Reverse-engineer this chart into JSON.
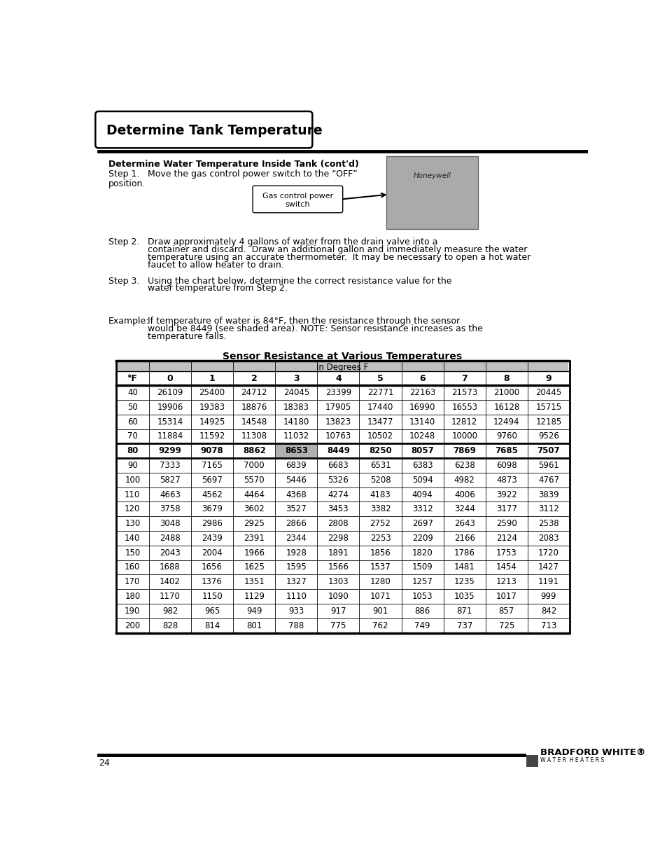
{
  "page_title": "Determine Tank Temperature",
  "section_title": "Determine Water Temperature Inside Tank (cont'd)",
  "step1_label": "Step 1.",
  "step2_label": "Step 2.",
  "step3_label": "Step 3.",
  "example_label": "Example:",
  "step1_line1": "Move the gas control power switch to the “OFF”",
  "step1_line2": "position.",
  "gas_control_label": "Gas control power\nswitch",
  "step2_text_lines": [
    "Draw approximately 4 gallons of water from the drain valve into a",
    "container and discard.  Draw an additional gallon and immediately measure the water",
    "temperature using an accurate thermometer.  It may be necessary to open a hot water",
    "faucet to allow heater to drain."
  ],
  "step3_text_lines": [
    "Using the chart below, determine the correct resistance value for the",
    "water temperature from Step 2."
  ],
  "example_text_lines": [
    "If temperature of water is 84°F, then the resistance through the sensor",
    "would be 8449 (see shaded area). NOTE: Sensor resistance increases as the",
    "temperature falls."
  ],
  "table_title": "Sensor Resistance at Various Temperatures",
  "table_subtitle": "In Degrees F",
  "col_headers": [
    "°F",
    "0",
    "1",
    "2",
    "3",
    "4",
    "5",
    "6",
    "7",
    "8",
    "9"
  ],
  "table_data": [
    [
      40,
      26109,
      25400,
      24712,
      24045,
      23399,
      22771,
      22163,
      21573,
      21000,
      20445
    ],
    [
      50,
      19906,
      19383,
      18876,
      18383,
      17905,
      17440,
      16990,
      16553,
      16128,
      15715
    ],
    [
      60,
      15314,
      14925,
      14548,
      14180,
      13823,
      13477,
      13140,
      12812,
      12494,
      12185
    ],
    [
      70,
      11884,
      11592,
      11308,
      11032,
      10763,
      10502,
      10248,
      10000,
      9760,
      9526
    ],
    [
      80,
      9299,
      9078,
      8862,
      8653,
      8449,
      8250,
      8057,
      7869,
      7685,
      7507
    ],
    [
      90,
      7333,
      7165,
      7000,
      6839,
      6683,
      6531,
      6383,
      6238,
      6098,
      5961
    ],
    [
      100,
      5827,
      5697,
      5570,
      5446,
      5326,
      5208,
      5094,
      4982,
      4873,
      4767
    ],
    [
      110,
      4663,
      4562,
      4464,
      4368,
      4274,
      4183,
      4094,
      4006,
      3922,
      3839
    ],
    [
      120,
      3758,
      3679,
      3602,
      3527,
      3453,
      3382,
      3312,
      3244,
      3177,
      3112
    ],
    [
      130,
      3048,
      2986,
      2925,
      2866,
      2808,
      2752,
      2697,
      2643,
      2590,
      2538
    ],
    [
      140,
      2488,
      2439,
      2391,
      2344,
      2298,
      2253,
      2209,
      2166,
      2124,
      2083
    ],
    [
      150,
      2043,
      2004,
      1966,
      1928,
      1891,
      1856,
      1820,
      1786,
      1753,
      1720
    ],
    [
      160,
      1688,
      1656,
      1625,
      1595,
      1566,
      1537,
      1509,
      1481,
      1454,
      1427
    ],
    [
      170,
      1402,
      1376,
      1351,
      1327,
      1303,
      1280,
      1257,
      1235,
      1213,
      1191
    ],
    [
      180,
      1170,
      1150,
      1129,
      1110,
      1090,
      1071,
      1053,
      1035,
      1017,
      999
    ],
    [
      190,
      982,
      965,
      949,
      933,
      917,
      901,
      886,
      871,
      857,
      842
    ],
    [
      200,
      828,
      814,
      801,
      788,
      775,
      762,
      749,
      737,
      725,
      713
    ]
  ],
  "highlighted_row": 4,
  "highlighted_col": 4,
  "highlight_color": "#b0b0b0",
  "header_bg": "#c0c0c0",
  "page_number": "24",
  "bg_color": "#ffffff",
  "text_color": "#000000"
}
